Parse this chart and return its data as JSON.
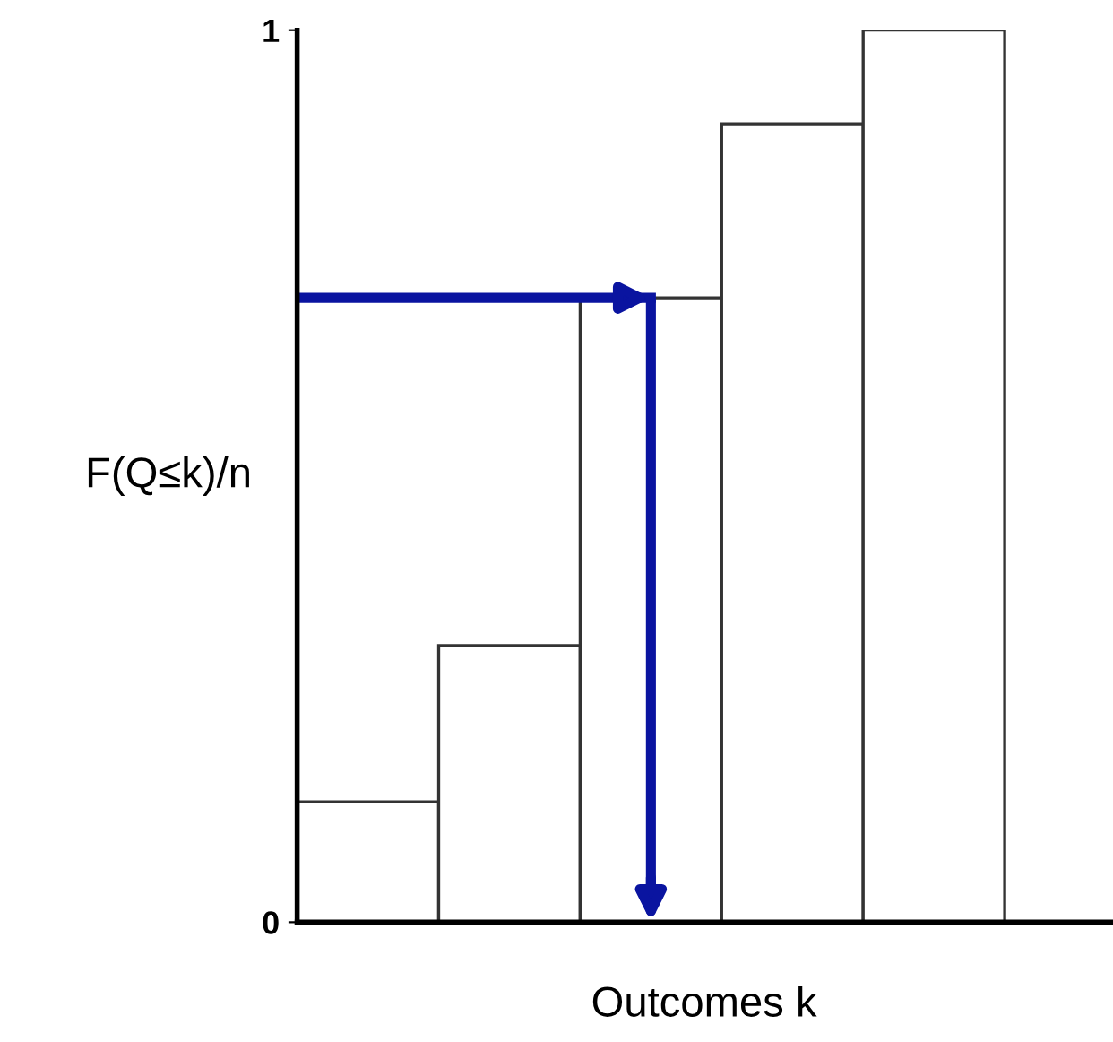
{
  "chart_data": {
    "type": "bar",
    "categories": [
      null,
      null,
      null,
      null,
      null
    ],
    "values": [
      0.135,
      0.31,
      0.7,
      0.895,
      1.0
    ],
    "color": "#ffffff",
    "xlabel": "Outcomes k",
    "ylabel": "F(Q≤k)/n",
    "ylim": [
      0,
      1
    ],
    "yticks": [
      0,
      1
    ],
    "ref_lines": [
      {
        "axis": "y",
        "value": 0.7,
        "color": "#0a14a0"
      }
    ],
    "grid": false
  }
}
